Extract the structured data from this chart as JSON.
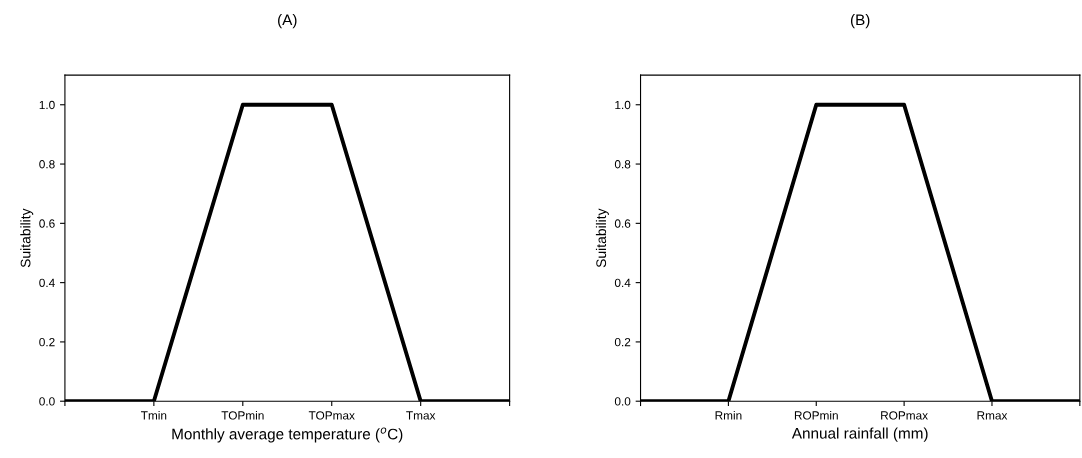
{
  "chart_data": [
    {
      "type": "line",
      "title": "(A)",
      "xlabel": "Monthly average temperature ($^{o}$C)",
      "ylabel": "Suitability",
      "categories": [
        null,
        "Tmin",
        "TOPmin",
        "TOPmax",
        "Tmax",
        null
      ],
      "series": [
        {
          "color": "#000000",
          "values": [
            0,
            0,
            1,
            1,
            0,
            0
          ]
        }
      ],
      "ylim": [
        0,
        1.1
      ],
      "yticks": [
        {
          "value": 0,
          "label": "0.0"
        },
        {
          "value": 0.2,
          "label": "0.2"
        },
        {
          "value": 0.4,
          "label": "0.4"
        },
        {
          "value": 0.6,
          "label": "0.6"
        },
        {
          "value": 0.8,
          "label": "0.8"
        },
        {
          "value": 1,
          "label": "1.0"
        }
      ],
      "grid": false,
      "legend": false,
      "marker": "none",
      "line_style": "solid"
    },
    {
      "type": "line",
      "title": "(B)",
      "xlabel": "Annual rainfall (mm)",
      "ylabel": "Suitability",
      "categories": [
        null,
        "Rmin",
        "ROPmin",
        "ROPmax",
        "Rmax",
        null
      ],
      "series": [
        {
          "color": "#000000",
          "values": [
            0,
            0,
            1,
            1,
            0,
            0
          ]
        }
      ],
      "ylim": [
        0,
        1.1
      ],
      "yticks": [
        {
          "value": 0,
          "label": "0.0"
        },
        {
          "value": 0.2,
          "label": "0.2"
        },
        {
          "value": 0.4,
          "label": "0.4"
        },
        {
          "value": 0.6,
          "label": "0.6"
        },
        {
          "value": 0.8,
          "label": "0.8"
        },
        {
          "value": 1,
          "label": "1.0"
        }
      ],
      "grid": false,
      "legend": false,
      "marker": "none",
      "line_style": "solid"
    }
  ]
}
